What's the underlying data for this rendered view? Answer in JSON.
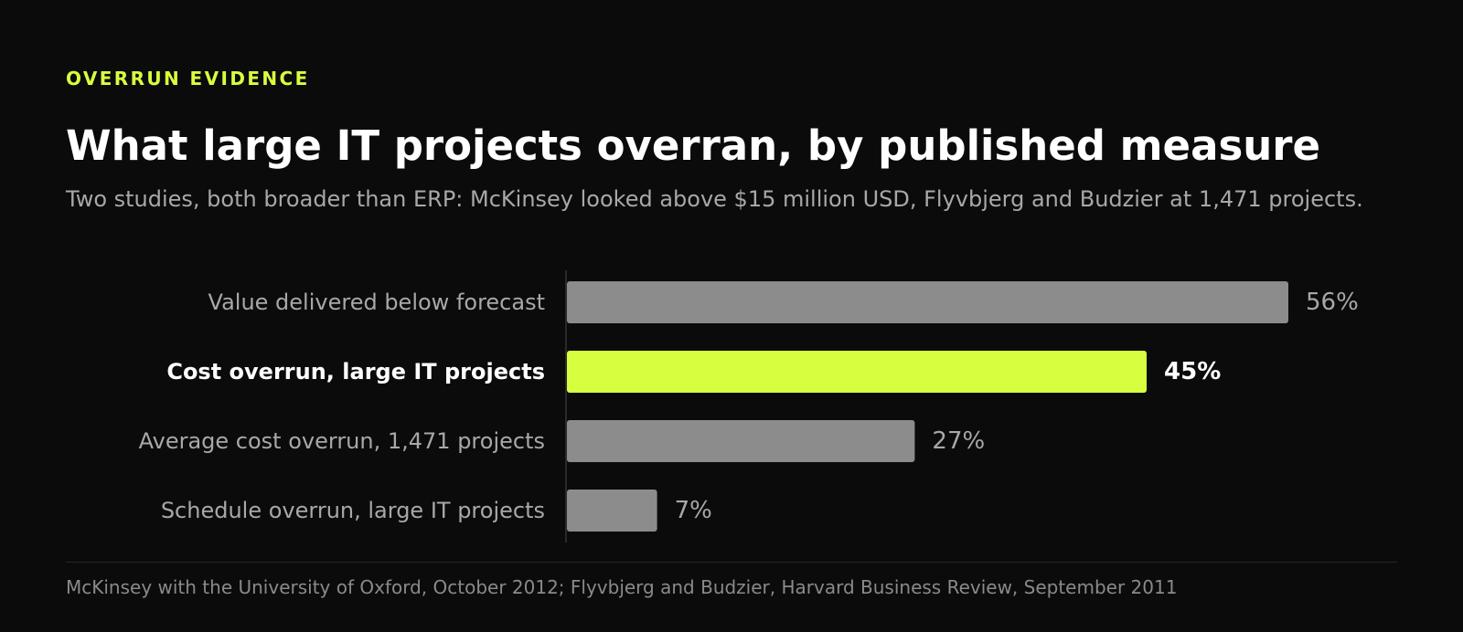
{
  "header": {
    "eyebrow": "OVERRUN EVIDENCE",
    "title": "What large IT projects overran, by published measure",
    "subtitle": "Two studies, both broader than ERP: McKinsey looked above $15 million USD, Flyvbjerg and Budzier at 1,471 projects."
  },
  "footer": {
    "source": "McKinsey with the University of Oxford, October 2012; Flyvbjerg and Budzier, Harvard Business Review, September 2011"
  },
  "colors": {
    "background": "#0b0b0b",
    "bar_default": "#8c8c8c",
    "bar_highlight": "#d8ff3f",
    "axis_line": "#2a2a2a"
  },
  "chart_data": {
    "type": "bar",
    "orientation": "horizontal",
    "categories": [
      "Value delivered below forecast",
      "Cost overrun, large IT projects",
      "Average cost overrun, 1,471 projects",
      "Schedule overrun, large IT projects"
    ],
    "values": [
      56,
      45,
      27,
      7
    ],
    "value_labels": [
      "56%",
      "45%",
      "27%",
      "7%"
    ],
    "highlight_index": 1,
    "xlim": [
      0,
      56
    ],
    "grid": false,
    "legend": "none"
  }
}
